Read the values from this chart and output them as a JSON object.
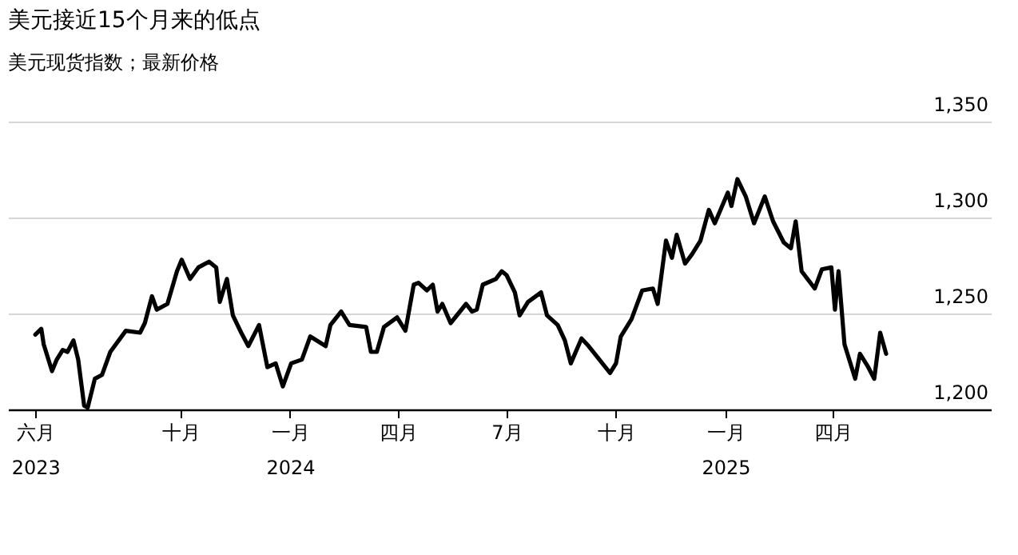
{
  "chart_data": {
    "type": "line",
    "title": "美元接近15个月来的低点",
    "subtitle": "美元现货指数；最新价格",
    "x": [
      "2023-06-01",
      "2023-06-06",
      "2023-06-08",
      "2023-06-15",
      "2023-06-19",
      "2023-06-24",
      "2023-06-28",
      "2023-07-03",
      "2023-07-07",
      "2023-07-12",
      "2023-07-15",
      "2023-07-21",
      "2023-07-27",
      "2023-08-03",
      "2023-08-16",
      "2023-08-28",
      "2023-09-01",
      "2023-09-07",
      "2023-09-11",
      "2023-09-20",
      "2023-09-28",
      "2023-10-02",
      "2023-10-09",
      "2023-10-16",
      "2023-10-25",
      "2023-10-31",
      "2023-11-03",
      "2023-11-09",
      "2023-11-14",
      "2023-11-21",
      "2023-11-27",
      "2023-12-06",
      "2023-12-13",
      "2023-12-20",
      "2023-12-26",
      "2024-01-02",
      "2024-01-11",
      "2024-01-18",
      "2024-01-31",
      "2024-02-04",
      "2024-02-13",
      "2024-02-20",
      "2024-03-05",
      "2024-03-09",
      "2024-03-14",
      "2024-03-20",
      "2024-03-31",
      "2024-04-07",
      "2024-04-14",
      "2024-04-18",
      "2024-04-25",
      "2024-04-30",
      "2024-05-04",
      "2024-05-08",
      "2024-05-15",
      "2024-05-28",
      "2024-06-02",
      "2024-06-06",
      "2024-06-11",
      "2024-06-22",
      "2024-06-27",
      "2024-07-01",
      "2024-07-08",
      "2024-07-12",
      "2024-07-19",
      "2024-07-30",
      "2024-08-04",
      "2024-08-13",
      "2024-08-19",
      "2024-08-24",
      "2024-09-02",
      "2024-09-08",
      "2024-09-17",
      "2024-09-26",
      "2024-10-01",
      "2024-10-05",
      "2024-10-14",
      "2024-10-23",
      "2024-11-01",
      "2024-11-05",
      "2024-11-12",
      "2024-11-17",
      "2024-11-21",
      "2024-11-28",
      "2024-12-04",
      "2024-12-11",
      "2024-12-18",
      "2024-12-23",
      "2025-01-03",
      "2025-01-06",
      "2025-01-11",
      "2025-01-18",
      "2025-01-25",
      "2025-02-03",
      "2025-02-10",
      "2025-02-19",
      "2025-02-25",
      "2025-03-01",
      "2025-03-06",
      "2025-03-17",
      "2025-03-23",
      "2025-03-31",
      "2025-04-03",
      "2025-04-06",
      "2025-04-11",
      "2025-04-20",
      "2025-04-24",
      "2025-05-01",
      "2025-05-06",
      "2025-05-11",
      "2025-05-16"
    ],
    "values": [
      1239,
      1242,
      1234,
      1220,
      1226,
      1231,
      1230,
      1236,
      1226,
      1202,
      1201,
      1216,
      1218,
      1230,
      1241,
      1240,
      1245,
      1259,
      1252,
      1255,
      1272,
      1278,
      1268,
      1274,
      1277,
      1274,
      1256,
      1268,
      1249,
      1240,
      1233,
      1244,
      1222,
      1224,
      1212,
      1224,
      1226,
      1238,
      1233,
      1244,
      1251,
      1244,
      1243,
      1230,
      1230,
      1243,
      1248,
      1241,
      1265,
      1266,
      1262,
      1265,
      1251,
      1255,
      1245,
      1255,
      1251,
      1252,
      1265,
      1268,
      1272,
      1270,
      1261,
      1249,
      1256,
      1261,
      1249,
      1244,
      1236,
      1224,
      1237,
      1233,
      1226,
      1219,
      1224,
      1238,
      1247,
      1262,
      1263,
      1255,
      1288,
      1279,
      1291,
      1276,
      1281,
      1288,
      1304,
      1297,
      1313,
      1306,
      1320,
      1311,
      1297,
      1311,
      1298,
      1287,
      1284,
      1298,
      1272,
      1263,
      1273,
      1274,
      1252,
      1272,
      1234,
      1216,
      1229,
      1222,
      1216,
      1240,
      1229
    ],
    "color": "#000000",
    "xlim": [
      "2023-05-09",
      "2025-08-12"
    ],
    "xticks": [
      {
        "value": "2023-06-01",
        "label": "六月\n2023"
      },
      {
        "value": "2023-10-01",
        "label": "十月"
      },
      {
        "value": "2024-01-01",
        "label": "一月\n2024"
      },
      {
        "value": "2024-04-01",
        "label": "四月"
      },
      {
        "value": "2024-07-01",
        "label": "7月"
      },
      {
        "value": "2024-10-01",
        "label": "十月"
      },
      {
        "value": "2025-01-01",
        "label": "一月\n2025"
      },
      {
        "value": "2025-04-01",
        "label": "四月"
      }
    ],
    "ylim": [
      1200,
      1350
    ],
    "yticks": [
      {
        "value": 1200,
        "label": "1,200"
      },
      {
        "value": 1250,
        "label": "1,250"
      },
      {
        "value": 1300,
        "label": "1,300"
      },
      {
        "value": 1350,
        "label": "1,350"
      }
    ],
    "grid": "y",
    "line_style": "solid",
    "legend": false
  }
}
